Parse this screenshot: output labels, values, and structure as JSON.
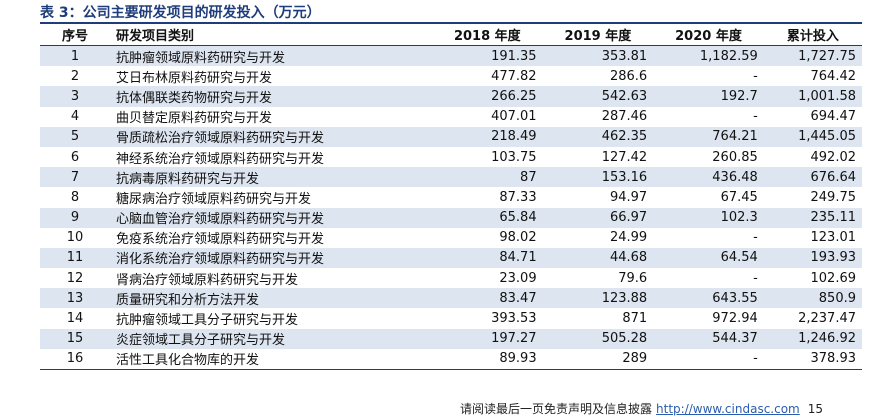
{
  "header": {
    "title": "表 3：公司主要研发项目的研发投入（万元）"
  },
  "table": {
    "columns": [
      "序号",
      "研发项目类别",
      "2018 年度",
      "2019 年度",
      "2020 年度",
      "累计投入"
    ],
    "rows": [
      [
        "1",
        "抗肿瘤领域原料药研究与开发",
        "191.35",
        "353.81",
        "1,182.59",
        "1,727.75"
      ],
      [
        "2",
        "艾日布林原料药研究与开发",
        "477.82",
        "286.6",
        "-",
        "764.42"
      ],
      [
        "3",
        "抗体偶联类药物研究与开发",
        "266.25",
        "542.63",
        "192.7",
        "1,001.58"
      ],
      [
        "4",
        "曲贝替定原料药研究与开发",
        "407.01",
        "287.46",
        "-",
        "694.47"
      ],
      [
        "5",
        "骨质疏松治疗领域原料药研究与开发",
        "218.49",
        "462.35",
        "764.21",
        "1,445.05"
      ],
      [
        "6",
        "神经系统治疗领域原料药研究与开发",
        "103.75",
        "127.42",
        "260.85",
        "492.02"
      ],
      [
        "7",
        "抗病毒原料药研究与开发",
        "87",
        "153.16",
        "436.48",
        "676.64"
      ],
      [
        "8",
        "糖尿病治疗领域原料药研究与开发",
        "87.33",
        "94.97",
        "67.45",
        "249.75"
      ],
      [
        "9",
        "心脑血管治疗领域原料药研究与开发",
        "65.84",
        "66.97",
        "102.3",
        "235.11"
      ],
      [
        "10",
        "免疫系统治疗领域原料药研究与开发",
        "98.02",
        "24.99",
        "-",
        "123.01"
      ],
      [
        "11",
        "消化系统治疗领域原料药研究与开发",
        "84.71",
        "44.68",
        "64.54",
        "193.93"
      ],
      [
        "12",
        "肾病治疗领域原料药研究与开发",
        "23.09",
        "79.6",
        "-",
        "102.69"
      ],
      [
        "13",
        "质量研究和分析方法开发",
        "83.47",
        "123.88",
        "643.55",
        "850.9"
      ],
      [
        "14",
        "抗肿瘤领域工具分子研究与开发",
        "393.53",
        "871",
        "972.94",
        "2,237.47"
      ],
      [
        "15",
        "炎症领域工具分子研究与开发",
        "197.27",
        "505.28",
        "544.37",
        "1,246.92"
      ],
      [
        "16",
        "活性工具化合物库的开发",
        "89.93",
        "289",
        "-",
        "378.93"
      ]
    ]
  },
  "footer": {
    "disclaimer": "请阅读最后一页免责声明及信息披露",
    "link": "http://www.cindasc.com",
    "page": "15"
  }
}
